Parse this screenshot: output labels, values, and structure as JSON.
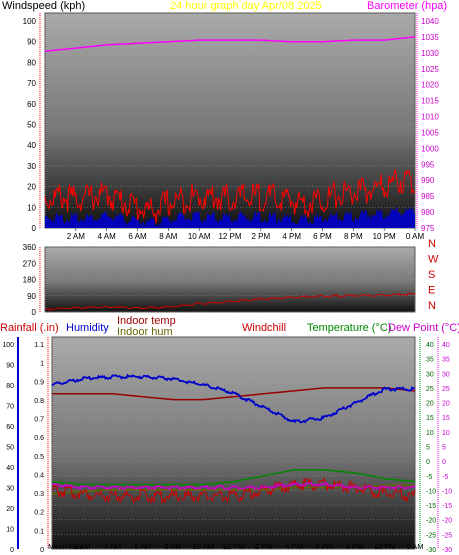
{
  "colors": {
    "windspeed": "#ff0000",
    "gust_band": "#0000cc",
    "barometer": "#ff00ff",
    "title": "#ffff00",
    "direction": "#cc0000",
    "rainfall": "#cc0000",
    "humidity": "#0000cc",
    "indoor_temp": "#990000",
    "indoor_hum": "#666600",
    "windchill": "#cc0000",
    "temperature": "#008800",
    "dewpoint": "#cc00cc"
  },
  "chart_data": [
    {
      "type": "line",
      "title": "24 hour graph day   Apr/08 2025",
      "ylabel_left": "Windspeed (kph)",
      "ylabel_right": "Barometer (hpa)",
      "x_ticks": [
        "2 AM",
        "4 AM",
        "6 AM",
        "8 AM",
        "10 AM",
        "12 PM",
        "2 PM",
        "4 PM",
        "6 PM",
        "8 PM",
        "10 PM",
        "0 AM"
      ],
      "y_left_ticks": [
        "0",
        "10",
        "20",
        "30",
        "40",
        "50",
        "60",
        "70",
        "80",
        "90",
        "100"
      ],
      "ylim_left": [
        0,
        100
      ],
      "y_right_ticks": [
        "975",
        "980",
        "985",
        "990",
        "995",
        "1000",
        "1005",
        "1010",
        "1015",
        "1020",
        "1025",
        "1030",
        "1035",
        "1040"
      ],
      "ylim_right": [
        975,
        1040
      ],
      "series": [
        {
          "name": "Windspeed (kph)",
          "axis": "left",
          "x": [
            0,
            1,
            2,
            3,
            4,
            5,
            6,
            7,
            8,
            9,
            10,
            11,
            12,
            13,
            14,
            15,
            16,
            17,
            18,
            19,
            20,
            21,
            22,
            23,
            24
          ],
          "values": [
            14,
            15,
            14,
            15,
            16,
            13,
            10,
            8,
            12,
            14,
            15,
            15,
            14,
            15,
            15,
            14,
            13,
            12,
            14,
            16,
            17,
            18,
            20,
            23,
            22
          ]
        },
        {
          "name": "Barometer (hpa)",
          "axis": "right",
          "x": [
            0,
            2,
            4,
            6,
            8,
            10,
            12,
            14,
            16,
            18,
            20,
            22,
            24
          ],
          "values": [
            1030.5,
            1031.5,
            1032.5,
            1033,
            1033.5,
            1034,
            1034,
            1034,
            1033.5,
            1033.5,
            1034,
            1034,
            1035
          ]
        }
      ]
    },
    {
      "type": "line",
      "title": "",
      "y_ticks": [
        "0",
        "90",
        "180",
        "270",
        "360"
      ],
      "ylim": [
        0,
        360
      ],
      "direction_labels": [
        "N",
        "W",
        "S",
        "E",
        "N"
      ],
      "series": [
        {
          "name": "",
          "x": [
            0,
            2,
            4,
            6,
            8,
            10,
            12,
            14,
            16,
            18,
            20,
            22,
            24
          ],
          "values": [
            15,
            22,
            28,
            22,
            28,
            45,
            58,
            72,
            80,
            88,
            90,
            94,
            100
          ]
        }
      ]
    },
    {
      "type": "line",
      "title": "",
      "legend": [
        "Rainfall (.in)",
        "Humidity",
        "Indoor temp",
        "Indoor hum",
        "Windchill",
        "Temperature (°C)",
        "Dew Point (°C)"
      ],
      "y_humidity_ticks": [
        "0",
        "10",
        "20",
        "30",
        "40",
        "50",
        "60",
        "70",
        "80",
        "90",
        "100"
      ],
      "ylim_humidity": [
        0,
        100
      ],
      "y_rain_ticks": [
        "0",
        "0.1",
        "0.2",
        "0.3",
        "0.4",
        "0.5",
        "0.6",
        "0.7",
        "0.8",
        "0.9",
        "1",
        "1.1"
      ],
      "ylim_rain": [
        0,
        1.1
      ],
      "y_temp_ticks": [
        "-30",
        "-25",
        "-20",
        "-15",
        "-10",
        "-5",
        "0",
        "5",
        "10",
        "15",
        "20",
        "25",
        "30",
        "35",
        "40"
      ],
      "ylim_temp": [
        -30,
        40
      ],
      "x_ticks": [
        "Moon Rise",
        "2 AM",
        "4 AM",
        "6 AM",
        "8 AM",
        "10 AM",
        "12 PM",
        "2 PM",
        "4 PM",
        "6 PM",
        "8 PM",
        "10 PM",
        "0 AM"
      ],
      "series": [
        {
          "name": "Humidity",
          "axis": "humidity",
          "x": [
            0,
            2,
            4,
            6,
            8,
            10,
            12,
            14,
            16,
            17,
            18,
            20,
            22,
            24
          ],
          "values": [
            80,
            83,
            84,
            84,
            83,
            80,
            76,
            69,
            62,
            63,
            64,
            71,
            78,
            78
          ]
        },
        {
          "name": "Indoor temp",
          "axis": "temp",
          "x": [
            0,
            2,
            4,
            6,
            8,
            10,
            12,
            14,
            16,
            18,
            20,
            22,
            24
          ],
          "values": [
            23,
            23,
            23,
            22,
            21,
            21,
            22,
            23,
            24,
            25,
            25,
            25,
            24
          ]
        },
        {
          "name": "Temperature (°C)",
          "axis": "temp",
          "x": [
            0,
            2,
            4,
            6,
            8,
            10,
            12,
            14,
            16,
            18,
            20,
            22,
            24
          ],
          "values": [
            -7,
            -8,
            -8,
            -8,
            -8,
            -8,
            -7,
            -5,
            -3,
            -3,
            -4,
            -6,
            -7
          ]
        },
        {
          "name": "Dew Point (°C)",
          "axis": "temp",
          "x": [
            0,
            2,
            4,
            6,
            8,
            10,
            12,
            14,
            16,
            18,
            20,
            22,
            24
          ],
          "values": [
            -8,
            -9,
            -9,
            -9,
            -9,
            -9,
            -9,
            -9,
            -8,
            -8,
            -9,
            -9,
            -9
          ]
        },
        {
          "name": "Windchill",
          "axis": "temp",
          "x": [
            0,
            2,
            4,
            6,
            8,
            10,
            12,
            14,
            16,
            18,
            20,
            22,
            24
          ],
          "values": [
            -10,
            -11,
            -12,
            -12,
            -12,
            -12,
            -12,
            -10,
            -8,
            -8,
            -9,
            -11,
            -12
          ]
        },
        {
          "name": "Indoor hum",
          "axis": "humidity",
          "x": [
            0,
            2,
            4,
            6,
            8,
            10,
            12,
            14,
            16,
            18,
            20,
            22,
            24
          ],
          "values": [
            27,
            28,
            29,
            29,
            29,
            29,
            29,
            29,
            30,
            30,
            30,
            31,
            31
          ]
        }
      ]
    }
  ]
}
